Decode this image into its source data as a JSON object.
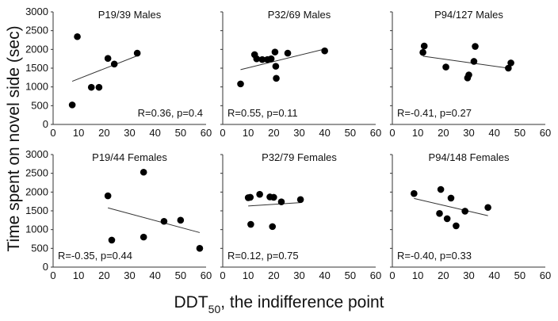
{
  "chart_data": [
    {
      "type": "scatter",
      "title": "P19/39 Males",
      "annotation": "R=0.36, p=0.4",
      "annotation_pos": "bottom-right",
      "points": [
        [
          7.5,
          520
        ],
        [
          9.5,
          2340
        ],
        [
          15,
          990
        ],
        [
          18,
          990
        ],
        [
          21.5,
          1760
        ],
        [
          24,
          1610
        ],
        [
          33,
          1900
        ]
      ],
      "fit": [
        [
          7.5,
          1150
        ],
        [
          33,
          1830
        ]
      ]
    },
    {
      "type": "scatter",
      "title": "P32/69 Males",
      "annotation": "R=0.55, p=0.11",
      "annotation_pos": "bottom-left",
      "points": [
        [
          7,
          1080
        ],
        [
          12.5,
          1860
        ],
        [
          13.3,
          1750
        ],
        [
          15.5,
          1730
        ],
        [
          17.5,
          1730
        ],
        [
          19,
          1750
        ],
        [
          20.5,
          1930
        ],
        [
          20.8,
          1550
        ],
        [
          21,
          1230
        ],
        [
          25.5,
          1900
        ],
        [
          40,
          1960
        ]
      ],
      "fit": [
        [
          7,
          1460
        ],
        [
          40,
          2010
        ]
      ]
    },
    {
      "type": "scatter",
      "title": "P94/127 Males",
      "annotation": "R=-0.41, p=0.27",
      "annotation_pos": "bottom-left",
      "points": [
        [
          12,
          1920
        ],
        [
          12.5,
          2090
        ],
        [
          21,
          1530
        ],
        [
          29.5,
          1240
        ],
        [
          30,
          1320
        ],
        [
          32,
          1680
        ],
        [
          32.5,
          2080
        ],
        [
          45.5,
          1500
        ],
        [
          46.5,
          1640
        ]
      ],
      "fit": [
        [
          12,
          1820
        ],
        [
          45.5,
          1500
        ]
      ]
    },
    {
      "type": "scatter",
      "title": "P19/44 Females",
      "annotation": "R=-0.35, p=0.44",
      "annotation_pos": "bottom-left",
      "points": [
        [
          21.5,
          1900
        ],
        [
          23,
          720
        ],
        [
          35.5,
          2530
        ],
        [
          35.5,
          800
        ],
        [
          43.5,
          1220
        ],
        [
          50,
          1250
        ],
        [
          57.5,
          500
        ]
      ],
      "fit": [
        [
          21.5,
          1580
        ],
        [
          57.5,
          920
        ]
      ]
    },
    {
      "type": "scatter",
      "title": "P32/79 Females",
      "annotation": "R=0.12, p=0.75",
      "annotation_pos": "bottom-left",
      "points": [
        [
          10,
          1850
        ],
        [
          10.8,
          1860
        ],
        [
          11,
          1140
        ],
        [
          14.5,
          1940
        ],
        [
          18.5,
          1870
        ],
        [
          20,
          1860
        ],
        [
          19.5,
          1080
        ],
        [
          23,
          1740
        ],
        [
          30.5,
          1800
        ]
      ],
      "fit": [
        [
          10,
          1630
        ],
        [
          30.5,
          1720
        ]
      ]
    },
    {
      "type": "scatter",
      "title": "P94/148 Females",
      "annotation": "R=-0.40, p=0.33",
      "annotation_pos": "bottom-left",
      "points": [
        [
          8.5,
          1960
        ],
        [
          19,
          2070
        ],
        [
          18.5,
          1430
        ],
        [
          21.5,
          1290
        ],
        [
          23,
          1840
        ],
        [
          25,
          1100
        ],
        [
          28.5,
          1490
        ],
        [
          37.5,
          1590
        ]
      ],
      "fit": [
        [
          8.5,
          1830
        ],
        [
          37.5,
          1370
        ]
      ]
    }
  ],
  "axes": {
    "xlim": [
      0,
      60
    ],
    "ylim": [
      0,
      3000
    ],
    "xticks": [
      "0",
      "10",
      "20",
      "30",
      "40",
      "50",
      "60"
    ],
    "yticks": [
      "0",
      "500",
      "1000",
      "1500",
      "2000",
      "2500",
      "3000"
    ],
    "ylabel": "Time spent on novel side (sec)",
    "xlabel_main": "DDT",
    "xlabel_sub": "50",
    "xlabel_rest": ", the indifference point"
  }
}
